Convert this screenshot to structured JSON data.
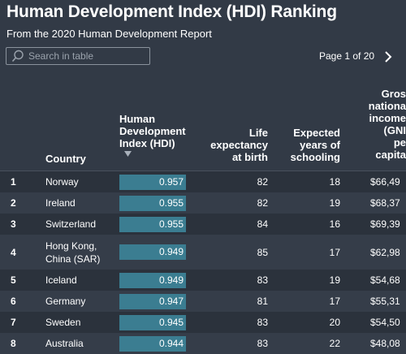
{
  "header": {
    "title": "Human Development Index (HDI) Ranking",
    "subtitle": "From the 2020 Human Development Report"
  },
  "search": {
    "placeholder": "Search in table",
    "value": ""
  },
  "pagination": {
    "label": "Page 1 of 20"
  },
  "columns": {
    "country": "Country",
    "hdi": [
      "Human",
      "Development",
      "Index (HDI)"
    ],
    "life": [
      "Life",
      "expectancy",
      "at birth"
    ],
    "schooling": [
      "Expected",
      "years of",
      "schooling"
    ],
    "gni": [
      "Gros",
      "nationa",
      "income",
      "(GNI",
      "pe",
      "capita"
    ]
  },
  "rows": [
    {
      "rank": "1",
      "country": "Norway",
      "hdi": "0.957",
      "life": "82",
      "schooling": "18",
      "gni": "$66,49"
    },
    {
      "rank": "2",
      "country": "Ireland",
      "hdi": "0.955",
      "life": "82",
      "schooling": "19",
      "gni": "$68,37"
    },
    {
      "rank": "3",
      "country": "Switzerland",
      "hdi": "0.955",
      "life": "84",
      "schooling": "16",
      "gni": "$69,39"
    },
    {
      "rank": "4",
      "country": "Hong Kong,\nChina (SAR)",
      "hdi": "0.949",
      "life": "85",
      "schooling": "17",
      "gni": "$62,98"
    },
    {
      "rank": "5",
      "country": "Iceland",
      "hdi": "0.949",
      "life": "83",
      "schooling": "19",
      "gni": "$54,68"
    },
    {
      "rank": "6",
      "country": "Germany",
      "hdi": "0.947",
      "life": "81",
      "schooling": "17",
      "gni": "$55,31"
    },
    {
      "rank": "7",
      "country": "Sweden",
      "hdi": "0.945",
      "life": "83",
      "schooling": "20",
      "gni": "$54,50"
    },
    {
      "rank": "8",
      "country": "Australia",
      "hdi": "0.944",
      "life": "83",
      "schooling": "22",
      "gni": "$48,08"
    }
  ],
  "icons": {
    "search": "search-icon",
    "next": "chevron-right-icon",
    "sort": "sort-descending-icon"
  },
  "colors": {
    "background": "#323a46",
    "bar": "#3b7d91",
    "text": "#ffffff"
  }
}
